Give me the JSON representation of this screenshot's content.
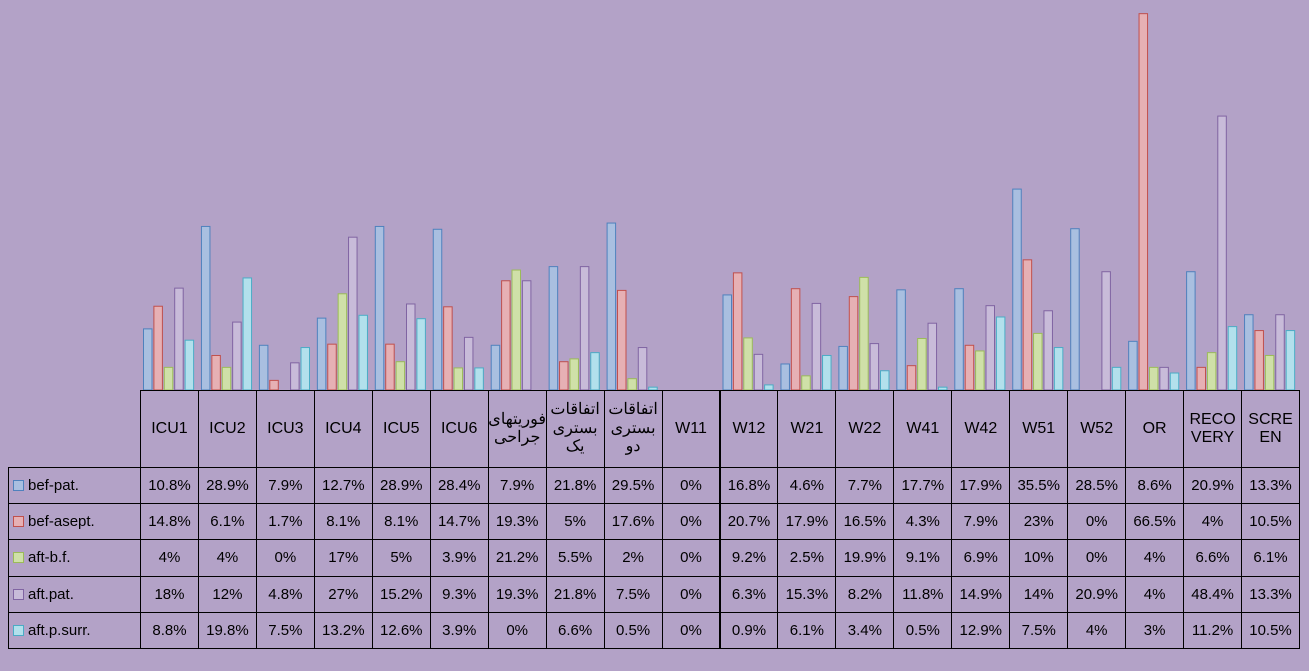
{
  "chart_data": {
    "type": "bar",
    "categories": [
      "ICU1",
      "ICU2",
      "ICU3",
      "ICU4",
      "ICU5",
      "ICU6",
      "فوریتهای جراحی",
      "اتفاقات بستری یک",
      "اتفاقات بستری دو",
      "W11",
      "W12",
      "W21",
      "W22",
      "W41",
      "W42",
      "W51",
      "W52",
      "OR",
      "RECOVERY",
      "SCREEN"
    ],
    "ylim": [
      0,
      67.5
    ],
    "series": [
      {
        "name": "bef-pat.",
        "color": "#4f81bd",
        "fill": "#a9bfe0",
        "values": [
          10.8,
          28.9,
          7.9,
          12.7,
          28.9,
          28.4,
          7.9,
          21.8,
          29.5,
          0,
          16.8,
          4.6,
          7.7,
          17.7,
          17.9,
          35.5,
          28.5,
          8.6,
          20.9,
          13.3
        ],
        "value_labels": [
          "10.8%",
          "28.9%",
          "7.9%",
          "12.7%",
          "28.9%",
          "28.4%",
          "7.9%",
          "21.8%",
          "29.5%",
          "0%",
          "16.8%",
          "4.6%",
          "7.7%",
          "17.7%",
          "17.9%",
          "35.5%",
          "28.5%",
          "8.6%",
          "20.9%",
          "13.3%"
        ]
      },
      {
        "name": "bef-asept.",
        "color": "#c0504d",
        "fill": "#e6b0b4",
        "values": [
          14.8,
          6.1,
          1.7,
          8.1,
          8.1,
          14.7,
          19.3,
          5,
          17.6,
          0,
          20.7,
          17.9,
          16.5,
          4.3,
          7.9,
          23,
          0,
          66.5,
          4,
          10.5
        ],
        "value_labels": [
          "14.8%",
          "6.1%",
          "1.7%",
          "8.1%",
          "8.1%",
          "14.7%",
          "19.3%",
          "5%",
          "17.6%",
          "0%",
          "20.7%",
          "17.9%",
          "16.5%",
          "4.3%",
          "7.9%",
          "23%",
          "0%",
          "66.5%",
          "4%",
          "10.5%"
        ]
      },
      {
        "name": "aft-b.f.",
        "color": "#9bbb59",
        "fill": "#cfe0a8",
        "values": [
          4,
          4,
          0,
          17,
          5,
          3.9,
          21.2,
          5.5,
          2,
          0,
          9.2,
          2.5,
          19.9,
          9.1,
          6.9,
          10,
          0,
          4,
          6.6,
          6.1
        ],
        "value_labels": [
          "4%",
          "4%",
          "0%",
          "17%",
          "5%",
          "3.9%",
          "21.2%",
          "5.5%",
          "2%",
          "0%",
          "9.2%",
          "2.5%",
          "19.9%",
          "9.1%",
          "6.9%",
          "10%",
          "0%",
          "4%",
          "6.6%",
          "6.1%"
        ]
      },
      {
        "name": "aft.pat.",
        "color": "#8064a2",
        "fill": "#c8bbd9",
        "values": [
          18,
          12,
          4.8,
          27,
          15.2,
          9.3,
          19.3,
          21.8,
          7.5,
          0,
          6.3,
          15.3,
          8.2,
          11.8,
          14.9,
          14,
          20.9,
          4,
          48.4,
          13.3
        ],
        "value_labels": [
          "18%",
          "12%",
          "4.8%",
          "27%",
          "15.2%",
          "9.3%",
          "19.3%",
          "21.8%",
          "7.5%",
          "0%",
          "6.3%",
          "15.3%",
          "8.2%",
          "11.8%",
          "14.9%",
          "14%",
          "20.9%",
          "4%",
          "48.4%",
          "13.3%"
        ]
      },
      {
        "name": "aft.p.surr.",
        "color": "#4bacc6",
        "fill": "#b2e0ec",
        "values": [
          8.8,
          19.8,
          7.5,
          13.2,
          12.6,
          3.9,
          0,
          6.6,
          0.5,
          0,
          0.9,
          6.1,
          3.4,
          0.5,
          12.9,
          7.5,
          4,
          3,
          11.2,
          10.5
        ],
        "value_labels": [
          "8.8%",
          "19.8%",
          "7.5%",
          "13.2%",
          "12.6%",
          "3.9%",
          "0%",
          "6.6%",
          "0.5%",
          "0%",
          "0.9%",
          "6.1%",
          "3.4%",
          "0.5%",
          "12.9%",
          "7.5%",
          "4%",
          "3%",
          "11.2%",
          "10.5%"
        ]
      }
    ]
  }
}
